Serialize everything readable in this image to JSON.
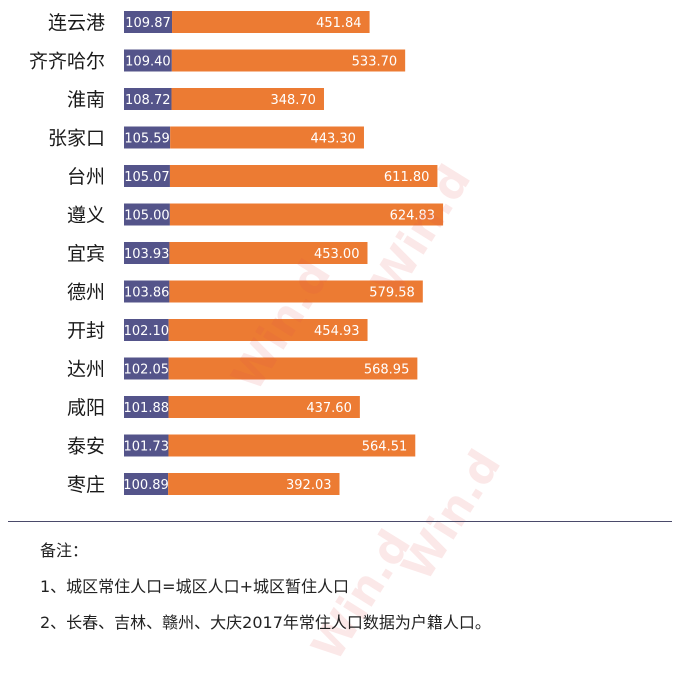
{
  "chart_data": {
    "type": "bar",
    "orientation": "horizontal",
    "stacked": true,
    "categories": [
      "连云港",
      "齐齐哈尔",
      "淮南",
      "张家口",
      "台州",
      "遵义",
      "宜宾",
      "德州",
      "开封",
      "达州",
      "咸阳",
      "泰安",
      "枣庄"
    ],
    "series": [
      {
        "values": [
          109.87,
          109.4,
          108.72,
          105.59,
          105.07,
          105.0,
          103.93,
          103.86,
          102.1,
          102.05,
          101.88,
          101.73,
          100.89
        ],
        "color": "#54548a"
      },
      {
        "values": [
          451.84,
          533.7,
          348.7,
          443.3,
          611.8,
          624.83,
          453.0,
          579.58,
          454.93,
          568.95,
          437.6,
          564.51,
          392.03
        ],
        "color": "#ec7b33"
      }
    ],
    "value_labels": [
      [
        "109.87",
        "451.84"
      ],
      [
        "109.40",
        "533.70"
      ],
      [
        "108.72",
        "348.70"
      ],
      [
        "105.59",
        "443.30"
      ],
      [
        "105.07",
        "611.80"
      ],
      [
        "105.00",
        "624.83"
      ],
      [
        "103.93",
        "453.00"
      ],
      [
        "103.86",
        "579.58"
      ],
      [
        "102.10",
        "454.93"
      ],
      [
        "102.05",
        "568.95"
      ],
      [
        "101.88",
        "437.60"
      ],
      [
        "101.73",
        "564.51"
      ],
      [
        "100.89",
        "392.03"
      ]
    ],
    "grid": false,
    "legend": "none"
  },
  "watermarks": [
    "Win.d",
    "Win.d",
    "Win.d",
    "Win.d"
  ],
  "notes": {
    "title": "备注：",
    "line1": "1、城区常住人口=城区人口+城区暂住人口",
    "line2": "2、长春、吉林、赣州、大庆2017年常住人口数据为户籍人口。"
  }
}
